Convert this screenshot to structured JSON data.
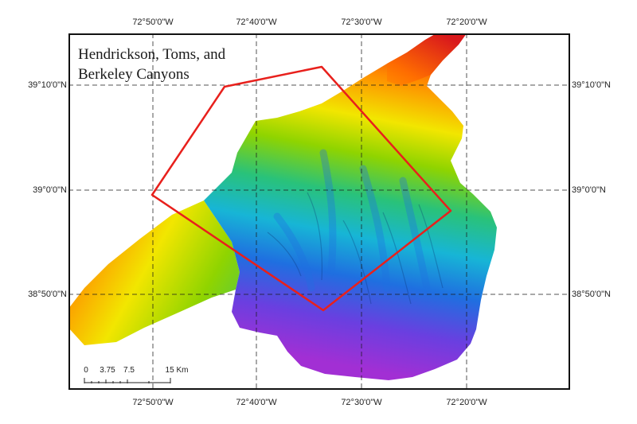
{
  "map": {
    "title_line1": "Hendrickson, Toms, and",
    "title_line2": "Berkeley Canyons",
    "longitude_labels": [
      "72°50'0\"W",
      "72°40'0\"W",
      "72°30'0\"W",
      "72°20'0\"W"
    ],
    "latitude_labels": [
      "39°10'0\"N",
      "39°0'0\"N",
      "38°50'0\"N"
    ],
    "scale_bar": {
      "labels": [
        "0",
        "3.75",
        "7.5",
        "15 Km"
      ]
    },
    "survey_polygon_color": "#e8201c",
    "bathymetry_palette": [
      "#e31a1c",
      "#ff8c00",
      "#f2e600",
      "#8fd400",
      "#29c27a",
      "#17b5d6",
      "#1f6fe0",
      "#6a3fe0",
      "#a22fd4"
    ]
  }
}
